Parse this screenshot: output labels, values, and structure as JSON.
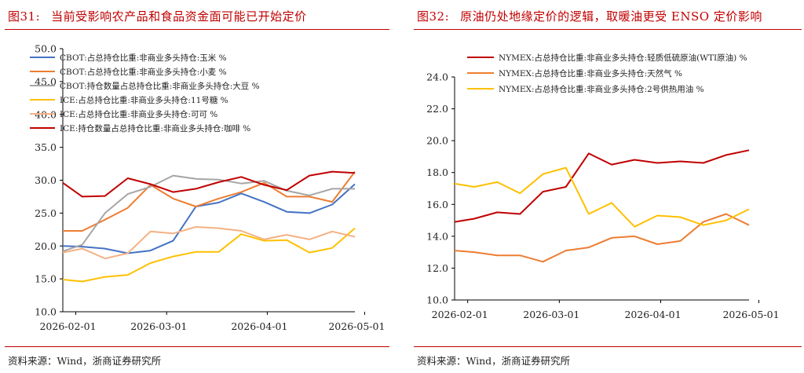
{
  "panels": [
    {
      "figure_number": "图31:",
      "title": "当前受影响农产品和食品资金面可能已开始定价",
      "source": "资料来源：Wind，浙商证券研究所",
      "chart_data": {
        "type": "line",
        "x_ticks": [
          "2026-02-01",
          "2026-03-01",
          "2026-04-01",
          "2026-05-01"
        ],
        "y_ticks": [
          "10.0",
          "15.0",
          "20.0",
          "25.0",
          "30.0",
          "35.0",
          "40.0",
          "45.0",
          "50.0"
        ],
        "ylim": [
          10,
          50
        ],
        "xlim": [
          "2026-01-28",
          "2026-04-28"
        ],
        "legend_position": "top-left",
        "grid": false,
        "series": [
          {
            "name": "CBOT:占总持仓比重:非商业多头持仓:玉米 %",
            "color": "#4472c4",
            "x": [
              "2026-01-28",
              "2026-02-03",
              "2026-02-10",
              "2026-02-17",
              "2026-02-24",
              "2026-03-03",
              "2026-03-10",
              "2026-03-17",
              "2026-03-24",
              "2026-03-31",
              "2026-04-07",
              "2026-04-14",
              "2026-04-21",
              "2026-04-28"
            ],
            "y": [
              20.0,
              19.9,
              19.6,
              18.9,
              19.3,
              20.8,
              26.0,
              26.6,
              28.0,
              26.7,
              25.2,
              25.0,
              26.3,
              29.4
            ]
          },
          {
            "name": "CBOT:占总持仓比重:非商业多头持仓:小麦 %",
            "color": "#ed7d31",
            "x": [
              "2026-01-28",
              "2026-02-03",
              "2026-02-10",
              "2026-02-17",
              "2026-02-24",
              "2026-03-03",
              "2026-03-10",
              "2026-03-17",
              "2026-03-24",
              "2026-03-31",
              "2026-04-07",
              "2026-04-14",
              "2026-04-21",
              "2026-04-28"
            ],
            "y": [
              22.3,
              22.3,
              24.0,
              25.8,
              29.3,
              27.2,
              26.0,
              27.2,
              28.2,
              29.6,
              27.5,
              27.5,
              26.7,
              31.3
            ]
          },
          {
            "name": "CBOT:持仓数量占总持仓比重:非商业多头持仓:大豆 %",
            "color": "#a5a5a5",
            "x": [
              "2026-01-28",
              "2026-02-03",
              "2026-02-10",
              "2026-02-17",
              "2026-02-24",
              "2026-03-03",
              "2026-03-10",
              "2026-03-17",
              "2026-03-24",
              "2026-03-31",
              "2026-04-07",
              "2026-04-14",
              "2026-04-21",
              "2026-04-28"
            ],
            "y": [
              19.2,
              20.2,
              25.0,
              27.9,
              29.0,
              30.7,
              30.2,
              30.1,
              29.5,
              29.9,
              28.4,
              27.7,
              28.7,
              28.7
            ]
          },
          {
            "name": "ICE:占总持仓比重:非商业多头持仓:11号糖 %",
            "color": "#ffc000",
            "x": [
              "2026-01-28",
              "2026-02-03",
              "2026-02-10",
              "2026-02-17",
              "2026-02-24",
              "2026-03-03",
              "2026-03-10",
              "2026-03-17",
              "2026-03-24",
              "2026-03-31",
              "2026-04-07",
              "2026-04-14",
              "2026-04-21",
              "2026-04-28"
            ],
            "y": [
              14.9,
              14.6,
              15.3,
              15.6,
              17.4,
              18.4,
              19.1,
              19.1,
              21.8,
              20.8,
              20.9,
              19.0,
              19.7,
              22.7
            ]
          },
          {
            "name": "ICE:占总持仓比重:非商业多头持仓:可可 %",
            "color": "#f4b183",
            "x": [
              "2026-01-28",
              "2026-02-03",
              "2026-02-10",
              "2026-02-17",
              "2026-02-24",
              "2026-03-03",
              "2026-03-10",
              "2026-03-17",
              "2026-03-24",
              "2026-03-31",
              "2026-04-07",
              "2026-04-14",
              "2026-04-21",
              "2026-04-28"
            ],
            "y": [
              19.0,
              19.6,
              18.1,
              18.9,
              22.2,
              21.9,
              22.9,
              22.7,
              22.3,
              21.0,
              21.7,
              21.0,
              22.2,
              21.4
            ]
          },
          {
            "name": "ICE:持仓数量占总持仓比重:非商业多头持仓:咖啡 %",
            "color": "#c00000",
            "x": [
              "2026-01-28",
              "2026-02-03",
              "2026-02-10",
              "2026-02-17",
              "2026-02-24",
              "2026-03-03",
              "2026-03-10",
              "2026-03-17",
              "2026-03-24",
              "2026-03-31",
              "2026-04-07",
              "2026-04-14",
              "2026-04-21",
              "2026-04-28"
            ],
            "y": [
              29.6,
              27.5,
              27.6,
              30.3,
              29.4,
              28.2,
              28.7,
              29.7,
              30.5,
              29.3,
              28.5,
              30.7,
              31.3,
              31.1
            ]
          }
        ]
      }
    },
    {
      "figure_number": "图32:",
      "title": "原油仍处地缘定价的逻辑，取暖油更受 ENSO 定价影响",
      "source": "资料来源：Wind，浙商证券研究所",
      "chart_data": {
        "type": "line",
        "x_ticks": [
          "2026-02-01",
          "2026-03-01",
          "2026-04-01",
          "2026-05-01"
        ],
        "y_ticks": [
          "10.0",
          "12.0",
          "14.0",
          "16.0",
          "18.0",
          "20.0",
          "22.0",
          "24.0"
        ],
        "ylim": [
          10,
          24
        ],
        "xlim": [
          "2026-01-28",
          "2026-04-28"
        ],
        "legend_position": "top-left",
        "grid": false,
        "series": [
          {
            "name": "NYMEX:占总持仓比重:非商业多头持仓:轻质低硫原油(WTI原油) %",
            "color": "#c00000",
            "x": [
              "2026-01-28",
              "2026-02-03",
              "2026-02-10",
              "2026-02-17",
              "2026-02-24",
              "2026-03-03",
              "2026-03-10",
              "2026-03-17",
              "2026-03-24",
              "2026-03-31",
              "2026-04-07",
              "2026-04-14",
              "2026-04-21",
              "2026-04-28"
            ],
            "y": [
              14.9,
              15.1,
              15.5,
              15.4,
              16.8,
              17.1,
              19.2,
              18.5,
              18.8,
              18.6,
              18.7,
              18.6,
              19.1,
              19.4
            ]
          },
          {
            "name": "NYMEX:占总持仓比重:非商业多头持仓:天然气 %",
            "color": "#ed7d31",
            "x": [
              "2026-01-28",
              "2026-02-03",
              "2026-02-10",
              "2026-02-17",
              "2026-02-24",
              "2026-03-03",
              "2026-03-10",
              "2026-03-17",
              "2026-03-24",
              "2026-03-31",
              "2026-04-07",
              "2026-04-14",
              "2026-04-21",
              "2026-04-28"
            ],
            "y": [
              13.1,
              13.0,
              12.8,
              12.8,
              12.4,
              13.1,
              13.3,
              13.9,
              14.0,
              13.5,
              13.7,
              14.9,
              15.4,
              14.7
            ]
          },
          {
            "name": "NYMEX:占总持仓比重:非商业多头持仓:2号供热用油 %",
            "color": "#ffc000",
            "x": [
              "2026-01-28",
              "2026-02-03",
              "2026-02-10",
              "2026-02-17",
              "2026-02-24",
              "2026-03-03",
              "2026-03-10",
              "2026-03-17",
              "2026-03-24",
              "2026-03-31",
              "2026-04-07",
              "2026-04-14",
              "2026-04-21",
              "2026-04-28"
            ],
            "y": [
              17.3,
              17.1,
              17.4,
              16.7,
              17.9,
              18.3,
              15.4,
              16.1,
              14.6,
              15.3,
              15.2,
              14.7,
              15.0,
              15.7
            ]
          }
        ]
      }
    }
  ]
}
